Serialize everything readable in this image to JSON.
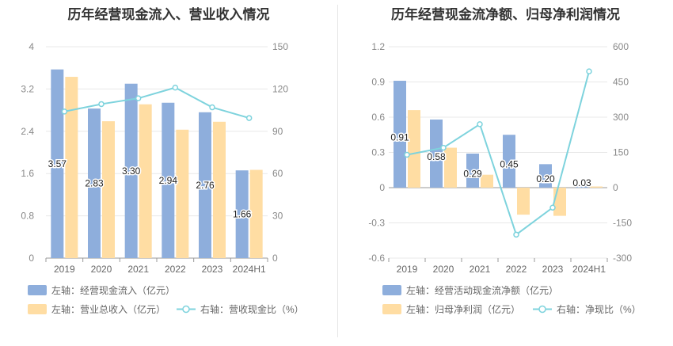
{
  "chart_data": [
    {
      "type": "bar",
      "title": "历年经营现金流入、营业收入情况",
      "categories": [
        "2019",
        "2020",
        "2021",
        "2022",
        "2023",
        "2024H1"
      ],
      "series": [
        {
          "name": "左轴：经营现金流入（亿元）",
          "axis": "left",
          "kind": "bar",
          "color": "#8eaedc",
          "values": [
            3.57,
            2.83,
            3.3,
            2.94,
            2.76,
            1.66
          ],
          "labels": [
            "3.57",
            "2.83",
            "3.30",
            "2.94",
            "2.76",
            "1.66"
          ]
        },
        {
          "name": "左轴：营业总收入（亿元）",
          "axis": "left",
          "kind": "bar",
          "color": "#ffdda3",
          "values": [
            3.43,
            2.59,
            2.91,
            2.43,
            2.58,
            1.67
          ]
        },
        {
          "name": "右轴：营收现金比（%）",
          "axis": "right",
          "kind": "line",
          "color": "#7ed3dd",
          "values": [
            104,
            109.3,
            113.4,
            121,
            107,
            99.4
          ]
        }
      ],
      "yleft": {
        "ticks": [
          "0",
          "0.8",
          "1.6",
          "2.4",
          "3.2",
          "4"
        ],
        "range": [
          0,
          4
        ]
      },
      "yright": {
        "ticks": [
          "0",
          "30",
          "60",
          "90",
          "120",
          "150"
        ],
        "range": [
          0,
          150
        ]
      },
      "legend": "bottom"
    },
    {
      "type": "bar",
      "title": "历年经营现金流净额、归母净利润情况",
      "categories": [
        "2019",
        "2020",
        "2021",
        "2022",
        "2023",
        "2024H1"
      ],
      "series": [
        {
          "name": "左轴：经营活动现金流净额（亿元）",
          "axis": "left",
          "kind": "bar",
          "color": "#8eaedc",
          "values": [
            0.91,
            0.58,
            0.29,
            0.45,
            0.2,
            0.03
          ],
          "labels": [
            "0.91",
            "0.58",
            "0.29",
            "0.45",
            "0.20",
            "0.03"
          ]
        },
        {
          "name": "左轴：归母净利润（亿元）",
          "axis": "left",
          "kind": "bar",
          "color": "#ffdda3",
          "values": [
            0.66,
            0.34,
            0.11,
            -0.23,
            -0.24,
            0.01
          ]
        },
        {
          "name": "右轴：净现比（%）",
          "axis": "right",
          "kind": "line",
          "color": "#7ed3dd",
          "values": [
            140,
            170,
            270,
            -200,
            -85,
            495
          ]
        }
      ],
      "yleft": {
        "ticks": [
          "-0.6",
          "-0.3",
          "0",
          "0.3",
          "0.6",
          "0.9",
          "1.2"
        ],
        "range": [
          -0.6,
          1.2
        ]
      },
      "yright": {
        "ticks": [
          "-300",
          "-150",
          "0",
          "150",
          "300",
          "450",
          "600"
        ],
        "range": [
          -300,
          600
        ]
      },
      "legend": "bottom"
    }
  ]
}
